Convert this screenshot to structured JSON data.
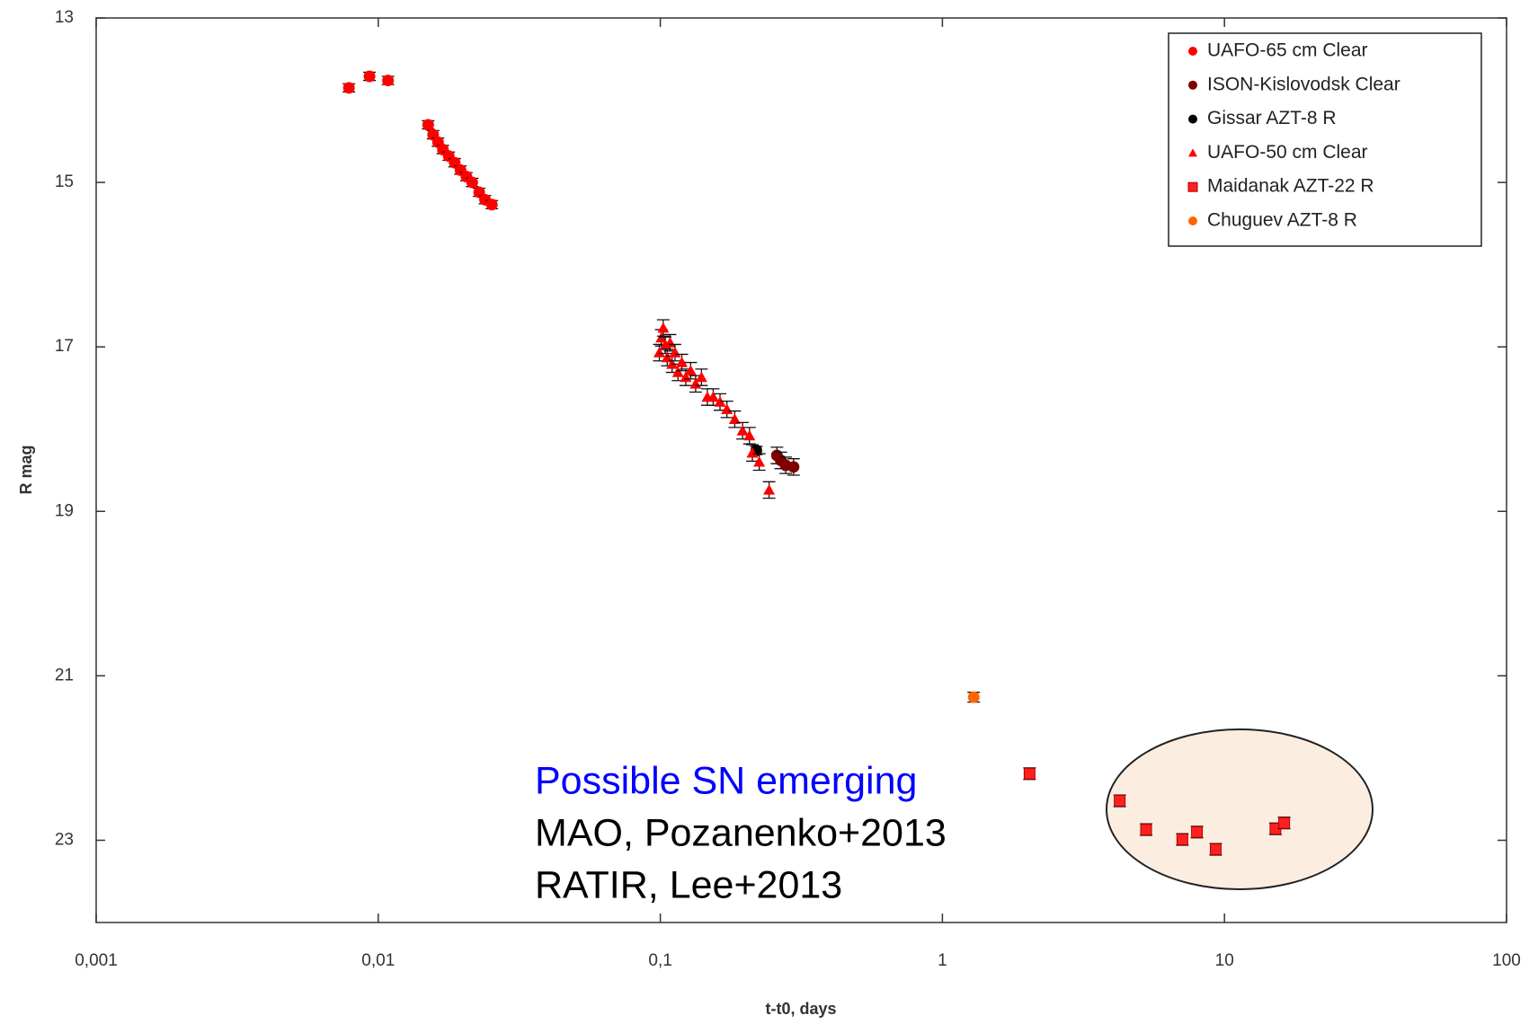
{
  "chart_data": {
    "type": "scatter",
    "xlabel": "t-t0, days",
    "ylabel": "R mag",
    "xscale": "log",
    "y_reversed": true,
    "xlim": [
      0.001,
      100
    ],
    "xticks": [
      {
        "value": 0.001,
        "label": "0,001"
      },
      {
        "value": 0.01,
        "label": "0,01"
      },
      {
        "value": 0.1,
        "label": "0,1"
      },
      1,
      10,
      100
    ],
    "ylim": [
      13,
      24
    ],
    "yticks": [
      13,
      15,
      17,
      19,
      21,
      23
    ],
    "grid": false,
    "legend": "upper right",
    "annotations": [
      {
        "text": "Possible SN emerging",
        "color": "#0000ff"
      },
      {
        "text": "MAO, Pozanenko+2013",
        "color": "#000000"
      },
      {
        "text": "RATIR, Lee+2013",
        "color": "#000000"
      }
    ],
    "series": [
      {
        "name": "UAFO-65 cm Clear",
        "color": "#ff0000",
        "marker": "circle",
        "error": 0.05,
        "x": [
          0.00787,
          0.00931,
          0.01083,
          0.01503,
          0.01565,
          0.01629,
          0.01695,
          0.01778,
          0.01866,
          0.01957,
          0.02054,
          0.02154,
          0.02279,
          0.0239,
          0.02528
        ],
        "values": [
          13.85,
          13.71,
          13.76,
          14.3,
          14.42,
          14.51,
          14.6,
          14.68,
          14.76,
          14.85,
          14.93,
          15.0,
          15.12,
          15.21,
          15.27
        ]
      },
      {
        "name": "ISON-Kislovodsk Clear",
        "color": "#800000",
        "marker": "circle",
        "error": 0.1,
        "x": [
          0.259,
          0.2673,
          0.2783,
          0.2967
        ],
        "values": [
          18.32,
          18.38,
          18.44,
          18.46
        ]
      },
      {
        "name": "Gissar AZT-8 R",
        "color": "#000000",
        "marker": "circle",
        "error": 0.05,
        "x": [
          0.2189
        ],
        "values": [
          18.26
        ]
      },
      {
        "name": "UAFO-50 cm Clear",
        "color": "#ff0000",
        "marker": "triangle",
        "error": 0.1,
        "x": [
          0.0992,
          0.1008,
          0.1024,
          0.1041,
          0.1058,
          0.1083,
          0.1101,
          0.1127,
          0.1155,
          0.1192,
          0.1231,
          0.1281,
          0.1334,
          0.1399,
          0.1468,
          0.154,
          0.1628,
          0.1722,
          0.1836,
          0.1957,
          0.207,
          0.212,
          0.2242,
          0.243
        ],
        "values": [
          17.07,
          16.89,
          16.77,
          16.98,
          17.13,
          16.95,
          17.21,
          17.07,
          17.31,
          17.19,
          17.37,
          17.29,
          17.45,
          17.37,
          17.61,
          17.61,
          17.67,
          17.76,
          17.88,
          18.02,
          18.08,
          18.29,
          18.4,
          18.74
        ]
      },
      {
        "name": "Maidanak AZT-22 R",
        "color": "#ff2020",
        "marker": "square",
        "error": 0.07,
        "x": [
          2.037,
          4.252,
          5.275,
          7.09,
          7.99,
          9.31,
          15.16,
          16.28
        ],
        "values": [
          22.19,
          22.52,
          22.87,
          22.99,
          22.9,
          23.11,
          22.86,
          22.79
        ]
      },
      {
        "name": "Chuguev AZT-8 R",
        "color": "#ff6600",
        "marker": "circle",
        "error": 0.06,
        "x": [
          1.2915
        ],
        "values": [
          21.26
        ]
      }
    ]
  }
}
